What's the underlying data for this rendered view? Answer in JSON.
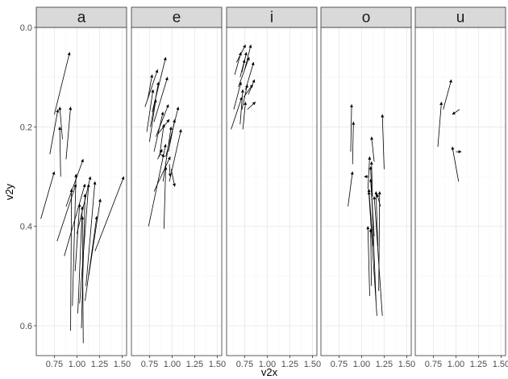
{
  "chart_data": {
    "type": "arrow",
    "xlabel": "v2x",
    "ylabel": "v2y",
    "xlim": [
      0.55,
      1.55
    ],
    "ylim": [
      0.0,
      0.66
    ],
    "y_reversed": true,
    "x_ticks": [
      0.75,
      1.0,
      1.25,
      1.5
    ],
    "x_tick_labels": [
      "0.75",
      "1.00",
      "1.25",
      "1.50"
    ],
    "y_ticks": [
      0.0,
      0.2,
      0.4,
      0.6
    ],
    "y_tick_labels": [
      "0.0",
      "0.2",
      "0.4",
      "0.6"
    ],
    "grid": true,
    "colors": {
      "arrow": "#000000",
      "strip_fill": "#d9d9d9",
      "grid_major": "#ebebeb",
      "grid_minor": "#f5f5f5",
      "panel_border": "#333333"
    },
    "facets": [
      {
        "name": "a",
        "arrows": [
          {
            "x0": 0.6,
            "y0": 0.385,
            "x1": 0.75,
            "y1": 0.29
          },
          {
            "x0": 0.7,
            "y0": 0.255,
            "x1": 0.79,
            "y1": 0.165
          },
          {
            "x0": 0.75,
            "y0": 0.175,
            "x1": 0.92,
            "y1": 0.05
          },
          {
            "x0": 0.78,
            "y0": 0.43,
            "x1": 0.99,
            "y1": 0.315
          },
          {
            "x0": 0.82,
            "y0": 0.3,
            "x1": 0.81,
            "y1": 0.2
          },
          {
            "x0": 0.84,
            "y0": 0.225,
            "x1": 0.81,
            "y1": 0.16
          },
          {
            "x0": 0.88,
            "y0": 0.265,
            "x1": 0.93,
            "y1": 0.16
          },
          {
            "x0": 0.86,
            "y0": 0.46,
            "x1": 1.09,
            "y1": 0.315
          },
          {
            "x0": 0.88,
            "y0": 0.36,
            "x1": 1.07,
            "y1": 0.265
          },
          {
            "x0": 0.93,
            "y0": 0.61,
            "x1": 0.94,
            "y1": 0.325
          },
          {
            "x0": 0.95,
            "y0": 0.56,
            "x1": 0.99,
            "y1": 0.295
          },
          {
            "x0": 0.98,
            "y0": 0.49,
            "x1": 1.03,
            "y1": 0.355
          },
          {
            "x0": 1.0,
            "y0": 0.415,
            "x1": 1.15,
            "y1": 0.3
          },
          {
            "x0": 1.01,
            "y0": 0.575,
            "x1": 1.06,
            "y1": 0.36
          },
          {
            "x0": 1.03,
            "y0": 0.555,
            "x1": 1.13,
            "y1": 0.315
          },
          {
            "x0": 1.05,
            "y0": 0.605,
            "x1": 1.09,
            "y1": 0.335
          },
          {
            "x0": 1.07,
            "y0": 0.635,
            "x1": 1.06,
            "y1": 0.38
          },
          {
            "x0": 1.09,
            "y0": 0.55,
            "x1": 1.22,
            "y1": 0.38
          },
          {
            "x0": 1.1,
            "y0": 0.52,
            "x1": 1.2,
            "y1": 0.31
          },
          {
            "x0": 1.13,
            "y0": 0.5,
            "x1": 1.26,
            "y1": 0.345
          },
          {
            "x0": 1.2,
            "y0": 0.45,
            "x1": 1.52,
            "y1": 0.3
          }
        ]
      },
      {
        "name": "e",
        "arrows": [
          {
            "x0": 0.7,
            "y0": 0.16,
            "x1": 0.84,
            "y1": 0.085
          },
          {
            "x0": 0.73,
            "y0": 0.145,
            "x1": 0.78,
            "y1": 0.095
          },
          {
            "x0": 0.72,
            "y0": 0.21,
            "x1": 0.79,
            "y1": 0.125
          },
          {
            "x0": 0.75,
            "y0": 0.23,
            "x1": 0.82,
            "y1": 0.145
          },
          {
            "x0": 0.76,
            "y0": 0.2,
            "x1": 0.85,
            "y1": 0.11
          },
          {
            "x0": 0.78,
            "y0": 0.17,
            "x1": 0.93,
            "y1": 0.06
          },
          {
            "x0": 0.8,
            "y0": 0.25,
            "x1": 0.9,
            "y1": 0.17
          },
          {
            "x0": 0.8,
            "y0": 0.19,
            "x1": 0.95,
            "y1": 0.1
          },
          {
            "x0": 0.82,
            "y0": 0.22,
            "x1": 0.96,
            "y1": 0.155
          },
          {
            "x0": 0.84,
            "y0": 0.215,
            "x1": 0.97,
            "y1": 0.185
          },
          {
            "x0": 0.86,
            "y0": 0.26,
            "x1": 0.91,
            "y1": 0.195
          },
          {
            "x0": 0.74,
            "y0": 0.4,
            "x1": 0.93,
            "y1": 0.235
          },
          {
            "x0": 0.8,
            "y0": 0.33,
            "x1": 0.98,
            "y1": 0.26
          },
          {
            "x0": 0.84,
            "y0": 0.265,
            "x1": 0.89,
            "y1": 0.245
          },
          {
            "x0": 0.87,
            "y0": 0.255,
            "x1": 0.92,
            "y1": 0.26
          },
          {
            "x0": 0.9,
            "y0": 0.31,
            "x1": 0.99,
            "y1": 0.2
          },
          {
            "x0": 0.91,
            "y0": 0.405,
            "x1": 0.93,
            "y1": 0.28
          },
          {
            "x0": 0.93,
            "y0": 0.26,
            "x1": 1.07,
            "y1": 0.16
          },
          {
            "x0": 0.96,
            "y0": 0.25,
            "x1": 1.03,
            "y1": 0.185
          },
          {
            "x0": 0.97,
            "y0": 0.31,
            "x1": 1.1,
            "y1": 0.205
          },
          {
            "x0": 0.97,
            "y0": 0.275,
            "x1": 0.98,
            "y1": 0.3
          },
          {
            "x0": 0.99,
            "y0": 0.285,
            "x1": 1.03,
            "y1": 0.32
          }
        ]
      },
      {
        "name": "i",
        "arrows": [
          {
            "x0": 0.6,
            "y0": 0.205,
            "x1": 0.72,
            "y1": 0.14
          },
          {
            "x0": 0.63,
            "y0": 0.165,
            "x1": 0.71,
            "y1": 0.11
          },
          {
            "x0": 0.64,
            "y0": 0.095,
            "x1": 0.71,
            "y1": 0.05
          },
          {
            "x0": 0.66,
            "y0": 0.07,
            "x1": 0.76,
            "y1": 0.035
          },
          {
            "x0": 0.68,
            "y0": 0.12,
            "x1": 0.8,
            "y1": 0.06
          },
          {
            "x0": 0.7,
            "y0": 0.195,
            "x1": 0.73,
            "y1": 0.125
          },
          {
            "x0": 0.7,
            "y0": 0.1,
            "x1": 0.75,
            "y1": 0.065
          },
          {
            "x0": 0.72,
            "y0": 0.165,
            "x1": 0.78,
            "y1": 0.115
          },
          {
            "x0": 0.72,
            "y0": 0.09,
            "x1": 0.77,
            "y1": 0.05
          },
          {
            "x0": 0.73,
            "y0": 0.205,
            "x1": 0.76,
            "y1": 0.15
          },
          {
            "x0": 0.74,
            "y0": 0.14,
            "x1": 0.84,
            "y1": 0.115
          },
          {
            "x0": 0.75,
            "y0": 0.085,
            "x1": 0.82,
            "y1": 0.035
          },
          {
            "x0": 0.76,
            "y0": 0.125,
            "x1": 0.85,
            "y1": 0.07
          },
          {
            "x0": 0.78,
            "y0": 0.165,
            "x1": 0.87,
            "y1": 0.15
          },
          {
            "x0": 0.79,
            "y0": 0.135,
            "x1": 0.86,
            "y1": 0.105
          }
        ]
      },
      {
        "name": "o",
        "arrows": [
          {
            "x0": 0.85,
            "y0": 0.36,
            "x1": 0.9,
            "y1": 0.29
          },
          {
            "x0": 0.88,
            "y0": 0.25,
            "x1": 0.89,
            "y1": 0.155
          },
          {
            "x0": 0.9,
            "y0": 0.275,
            "x1": 0.91,
            "y1": 0.19
          },
          {
            "x0": 1.08,
            "y0": 0.3,
            "x1": 1.03,
            "y1": 0.3
          },
          {
            "x0": 1.07,
            "y0": 0.325,
            "x1": 1.09,
            "y1": 0.26
          },
          {
            "x0": 1.09,
            "y0": 0.54,
            "x1": 1.07,
            "y1": 0.4
          },
          {
            "x0": 1.11,
            "y0": 0.52,
            "x1": 1.1,
            "y1": 0.405
          },
          {
            "x0": 1.12,
            "y0": 0.34,
            "x1": 1.11,
            "y1": 0.27
          },
          {
            "x0": 1.13,
            "y0": 0.44,
            "x1": 1.08,
            "y1": 0.325
          },
          {
            "x0": 1.14,
            "y0": 0.42,
            "x1": 1.1,
            "y1": 0.305
          },
          {
            "x0": 1.14,
            "y0": 0.27,
            "x1": 1.11,
            "y1": 0.22
          },
          {
            "x0": 1.16,
            "y0": 0.55,
            "x1": 1.1,
            "y1": 0.28
          },
          {
            "x0": 1.17,
            "y0": 0.58,
            "x1": 1.08,
            "y1": 0.33
          },
          {
            "x0": 1.18,
            "y0": 0.44,
            "x1": 1.16,
            "y1": 0.33
          },
          {
            "x0": 1.19,
            "y0": 0.53,
            "x1": 1.2,
            "y1": 0.33
          },
          {
            "x0": 1.21,
            "y0": 0.36,
            "x1": 1.17,
            "y1": 0.335
          },
          {
            "x0": 1.23,
            "y0": 0.58,
            "x1": 1.14,
            "y1": 0.34
          },
          {
            "x0": 1.25,
            "y0": 0.285,
            "x1": 1.23,
            "y1": 0.175
          }
        ]
      },
      {
        "name": "u",
        "arrows": [
          {
            "x0": 0.8,
            "y0": 0.24,
            "x1": 0.84,
            "y1": 0.15
          },
          {
            "x0": 0.86,
            "y0": 0.165,
            "x1": 0.95,
            "y1": 0.105
          },
          {
            "x0": 1.04,
            "y0": 0.165,
            "x1": 0.96,
            "y1": 0.175
          },
          {
            "x0": 1.03,
            "y0": 0.31,
            "x1": 0.96,
            "y1": 0.24
          },
          {
            "x0": 1.0,
            "y0": 0.25,
            "x1": 1.06,
            "y1": 0.25
          }
        ]
      }
    ]
  }
}
